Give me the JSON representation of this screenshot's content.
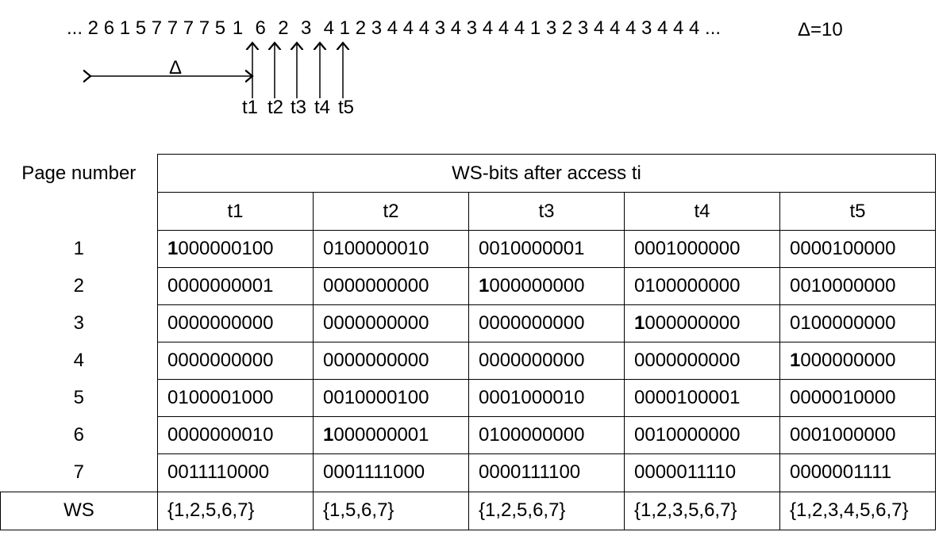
{
  "sequence": {
    "prefix": "... 2 6 1 5 7 7 7 7 5",
    "marked": [
      "1",
      "6",
      "2",
      "3",
      "4"
    ],
    "suffix": "1 2 3 4 4 4 3 4 3 4 4 4 1 3 2 3 4 4 4 3 4 4 4 ...",
    "delta_value": "Δ=10",
    "delta_symbol": "Δ",
    "access_labels": [
      "t1",
      "t2",
      "t3",
      "t4",
      "t5"
    ]
  },
  "table": {
    "row_header": "Page number",
    "group_header": "WS-bits after access ti",
    "columns": [
      "t1",
      "t2",
      "t3",
      "t4",
      "t5"
    ],
    "rows": [
      {
        "page": "1",
        "cells": [
          [
            "1",
            "000000100"
          ],
          [
            "",
            "0100000010"
          ],
          [
            "",
            "0010000001"
          ],
          [
            "",
            "0001000000"
          ],
          [
            "",
            "0000100000"
          ]
        ]
      },
      {
        "page": "2",
        "cells": [
          [
            "",
            "0000000001"
          ],
          [
            "",
            "0000000000"
          ],
          [
            "1",
            "000000000"
          ],
          [
            "",
            "0100000000"
          ],
          [
            "",
            "0010000000"
          ]
        ]
      },
      {
        "page": "3",
        "cells": [
          [
            "",
            "0000000000"
          ],
          [
            "",
            "0000000000"
          ],
          [
            "",
            "0000000000"
          ],
          [
            "1",
            "000000000"
          ],
          [
            "",
            "0100000000"
          ]
        ]
      },
      {
        "page": "4",
        "cells": [
          [
            "",
            "0000000000"
          ],
          [
            "",
            "0000000000"
          ],
          [
            "",
            "0000000000"
          ],
          [
            "",
            "0000000000"
          ],
          [
            "1",
            "000000000"
          ]
        ]
      },
      {
        "page": "5",
        "cells": [
          [
            "",
            "0100001000"
          ],
          [
            "",
            "0010000100"
          ],
          [
            "",
            "0001000010"
          ],
          [
            "",
            "0000100001"
          ],
          [
            "",
            "0000010000"
          ]
        ]
      },
      {
        "page": "6",
        "cells": [
          [
            "",
            "0000000010"
          ],
          [
            "1",
            "000000001"
          ],
          [
            "",
            "0100000000"
          ],
          [
            "",
            "0010000000"
          ],
          [
            "",
            "0001000000"
          ]
        ]
      },
      {
        "page": "7",
        "cells": [
          [
            "",
            "0011110000"
          ],
          [
            "",
            "0001111000"
          ],
          [
            "",
            "0000111100"
          ],
          [
            "",
            "0000011110"
          ],
          [
            "",
            "0000001111"
          ]
        ]
      }
    ],
    "ws_label": "WS",
    "ws_values": [
      "{1,2,5,6,7}",
      "{1,5,6,7}",
      "{1,2,5,6,7}",
      "{1,2,3,5,6,7}",
      "{1,2,3,4,5,6,7}"
    ]
  }
}
